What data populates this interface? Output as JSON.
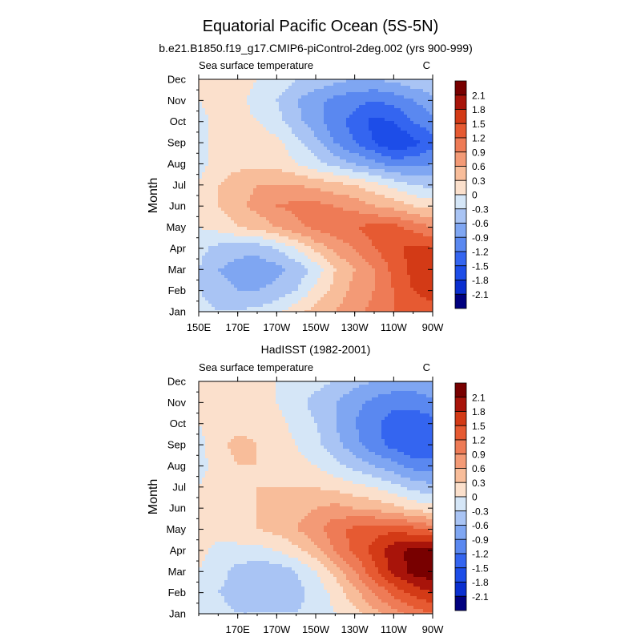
{
  "title": "Equatorial Pacific Ocean (5S-5N)",
  "chart_data": [
    {
      "type": "heatmap",
      "subtitle": "b.e21.B1850.f19_g17.CMIP6-piControl-2deg.002 (yrs 900-999)",
      "left_label": "Sea surface temperature",
      "right_label": "C",
      "ylabel": "Month",
      "xlabel": "",
      "x_ticks": [
        {
          "label": "150E",
          "lon": 150
        },
        {
          "label": "170E",
          "lon": 170
        },
        {
          "label": "170W",
          "lon": 190
        },
        {
          "label": "150W",
          "lon": 210
        },
        {
          "label": "130W",
          "lon": 230
        },
        {
          "label": "110W",
          "lon": 250
        },
        {
          "label": "90W",
          "lon": 270
        }
      ],
      "xlim": [
        150,
        270
      ],
      "months": [
        "Jan",
        "Feb",
        "Mar",
        "Apr",
        "May",
        "Jun",
        "Jul",
        "Aug",
        "Sep",
        "Oct",
        "Nov",
        "Dec"
      ],
      "levels": [
        -2.1,
        -1.8,
        -1.5,
        -1.2,
        -0.9,
        -0.6,
        -0.3,
        0,
        0.3,
        0.6,
        0.9,
        1.2,
        1.5,
        1.8,
        2.1
      ],
      "colorbar_labels": [
        "2.1",
        "1.8",
        "1.5",
        "1.2",
        "0.9",
        "0.6",
        "0.3",
        "0",
        "-0.3",
        "-0.6",
        "-0.9",
        "-1.2",
        "-1.5",
        "-1.8",
        "-2.1"
      ],
      "lons": [
        150,
        160,
        170,
        180,
        190,
        200,
        210,
        220,
        230,
        240,
        250,
        260,
        270
      ],
      "values": [
        [
          -0.1,
          -0.3,
          -0.3,
          -0.2,
          -0.1,
          0.2,
          0.4,
          0.6,
          0.8,
          1.0,
          1.2,
          1.4,
          1.4
        ],
        [
          -0.3,
          -0.5,
          -0.6,
          -0.6,
          -0.5,
          -0.3,
          0.1,
          0.4,
          0.7,
          0.9,
          1.2,
          1.5,
          1.6
        ],
        [
          -0.3,
          -0.6,
          -0.7,
          -0.8,
          -0.7,
          -0.5,
          -0.2,
          0.3,
          0.6,
          0.9,
          1.3,
          1.6,
          1.7
        ],
        [
          -0.2,
          -0.4,
          -0.5,
          -0.5,
          -0.3,
          0.0,
          0.4,
          0.7,
          0.9,
          1.2,
          1.4,
          1.6,
          1.5
        ],
        [
          0.0,
          0.1,
          0.3,
          0.4,
          0.6,
          0.8,
          1.0,
          1.1,
          1.2,
          1.3,
          1.3,
          1.1,
          0.9
        ],
        [
          0.1,
          0.3,
          0.5,
          0.7,
          0.9,
          1.0,
          1.0,
          0.9,
          0.8,
          0.6,
          0.5,
          0.3,
          0.2
        ],
        [
          0.0,
          0.3,
          0.5,
          0.6,
          0.6,
          0.6,
          0.5,
          0.4,
          0.3,
          0.1,
          -0.1,
          -0.3,
          -0.4
        ],
        [
          -0.1,
          0.1,
          0.2,
          0.2,
          0.2,
          0.0,
          -0.2,
          -0.4,
          -0.6,
          -0.8,
          -1.0,
          -1.0,
          -0.9
        ],
        [
          -0.1,
          0.1,
          0.2,
          0.2,
          0.1,
          -0.2,
          -0.5,
          -0.9,
          -1.2,
          -1.5,
          -1.8,
          -1.6,
          -1.3
        ],
        [
          -0.1,
          0.1,
          0.1,
          0.0,
          -0.2,
          -0.5,
          -0.8,
          -1.1,
          -1.3,
          -1.6,
          -1.5,
          -1.2,
          -1.0
        ],
        [
          0.0,
          0.1,
          0.1,
          -0.1,
          -0.3,
          -0.6,
          -0.8,
          -1.0,
          -1.1,
          -1.2,
          -1.1,
          -0.9,
          -0.7
        ],
        [
          0.1,
          0.2,
          0.1,
          0.0,
          -0.1,
          -0.3,
          -0.4,
          -0.5,
          -0.6,
          -0.6,
          -0.5,
          -0.4,
          -0.3
        ]
      ]
    },
    {
      "type": "heatmap",
      "subtitle": "HadISST (1982-2001)",
      "left_label": "Sea surface temperature",
      "right_label": "C",
      "ylabel": "Month",
      "xlabel": "",
      "x_ticks": [
        {
          "label": "170E",
          "lon": 170
        },
        {
          "label": "170W",
          "lon": 190
        },
        {
          "label": "150W",
          "lon": 210
        },
        {
          "label": "130W",
          "lon": 230
        },
        {
          "label": "110W",
          "lon": 250
        },
        {
          "label": "90W",
          "lon": 270
        }
      ],
      "xlim": [
        150,
        270
      ],
      "months": [
        "Jan",
        "Feb",
        "Mar",
        "Apr",
        "May",
        "Jun",
        "Jul",
        "Aug",
        "Sep",
        "Oct",
        "Nov",
        "Dec"
      ],
      "levels": [
        -2.1,
        -1.8,
        -1.5,
        -1.2,
        -0.9,
        -0.6,
        -0.3,
        0,
        0.3,
        0.6,
        0.9,
        1.2,
        1.5,
        1.8,
        2.1
      ],
      "colorbar_labels": [
        "2.1",
        "1.8",
        "1.5",
        "1.2",
        "0.9",
        "0.6",
        "0.3",
        "0",
        "-0.3",
        "-0.6",
        "-0.9",
        "-1.2",
        "-1.5",
        "-1.8",
        "-2.1"
      ],
      "lons": [
        150,
        160,
        170,
        180,
        190,
        200,
        210,
        220,
        230,
        240,
        250,
        260,
        270
      ],
      "values": [
        [
          0.0,
          -0.2,
          -0.3,
          -0.3,
          -0.3,
          -0.3,
          -0.2,
          0.0,
          0.2,
          0.5,
          0.8,
          1.0,
          1.2
        ],
        [
          0.0,
          -0.3,
          -0.4,
          -0.5,
          -0.5,
          -0.4,
          -0.2,
          0.1,
          0.5,
          0.9,
          1.3,
          1.6,
          1.8
        ],
        [
          0.0,
          -0.2,
          -0.4,
          -0.5,
          -0.5,
          -0.3,
          0.0,
          0.4,
          0.9,
          1.4,
          1.9,
          2.2,
          2.3
        ],
        [
          0.1,
          -0.1,
          -0.1,
          -0.1,
          0.0,
          0.2,
          0.5,
          0.9,
          1.3,
          1.6,
          2.0,
          2.2,
          2.3
        ],
        [
          0.1,
          0.1,
          0.2,
          0.3,
          0.4,
          0.6,
          0.8,
          1.1,
          1.3,
          1.4,
          1.4,
          1.3,
          1.1
        ],
        [
          0.1,
          0.2,
          0.2,
          0.3,
          0.4,
          0.5,
          0.6,
          0.7,
          0.6,
          0.5,
          0.4,
          0.2,
          0.1
        ],
        [
          0.0,
          0.2,
          0.2,
          0.3,
          0.3,
          0.3,
          0.3,
          0.2,
          0.1,
          0.0,
          -0.2,
          -0.4,
          -0.5
        ],
        [
          -0.1,
          0.1,
          0.3,
          0.3,
          0.2,
          0.1,
          0.0,
          -0.2,
          -0.4,
          -0.6,
          -0.8,
          -1.0,
          -1.1
        ],
        [
          -0.1,
          0.2,
          0.4,
          0.3,
          0.2,
          0.0,
          -0.2,
          -0.5,
          -0.8,
          -1.1,
          -1.3,
          -1.5,
          -1.4
        ],
        [
          0.0,
          0.2,
          0.2,
          0.2,
          0.1,
          -0.1,
          -0.3,
          -0.6,
          -0.9,
          -1.1,
          -1.4,
          -1.4,
          -1.3
        ],
        [
          0.1,
          0.2,
          0.2,
          0.1,
          0.0,
          -0.2,
          -0.4,
          -0.6,
          -0.8,
          -1.0,
          -1.1,
          -1.1,
          -1.0
        ],
        [
          0.1,
          0.2,
          0.2,
          0.1,
          0.0,
          -0.1,
          -0.2,
          -0.3,
          -0.5,
          -0.6,
          -0.7,
          -0.7,
          -0.6
        ]
      ]
    }
  ],
  "colors": {
    "palette": [
      "#00007f",
      "#0a2fd0",
      "#1d4de8",
      "#3465f0",
      "#5a88f0",
      "#7fa6f2",
      "#a9c4f4",
      "#d5e6f7",
      "#fbe0cc",
      "#f8bd9a",
      "#f39a76",
      "#ee7b56",
      "#e65a32",
      "#d33a16",
      "#a8140a",
      "#780000"
    ],
    "axis": "#000000",
    "background": "#ffffff"
  }
}
